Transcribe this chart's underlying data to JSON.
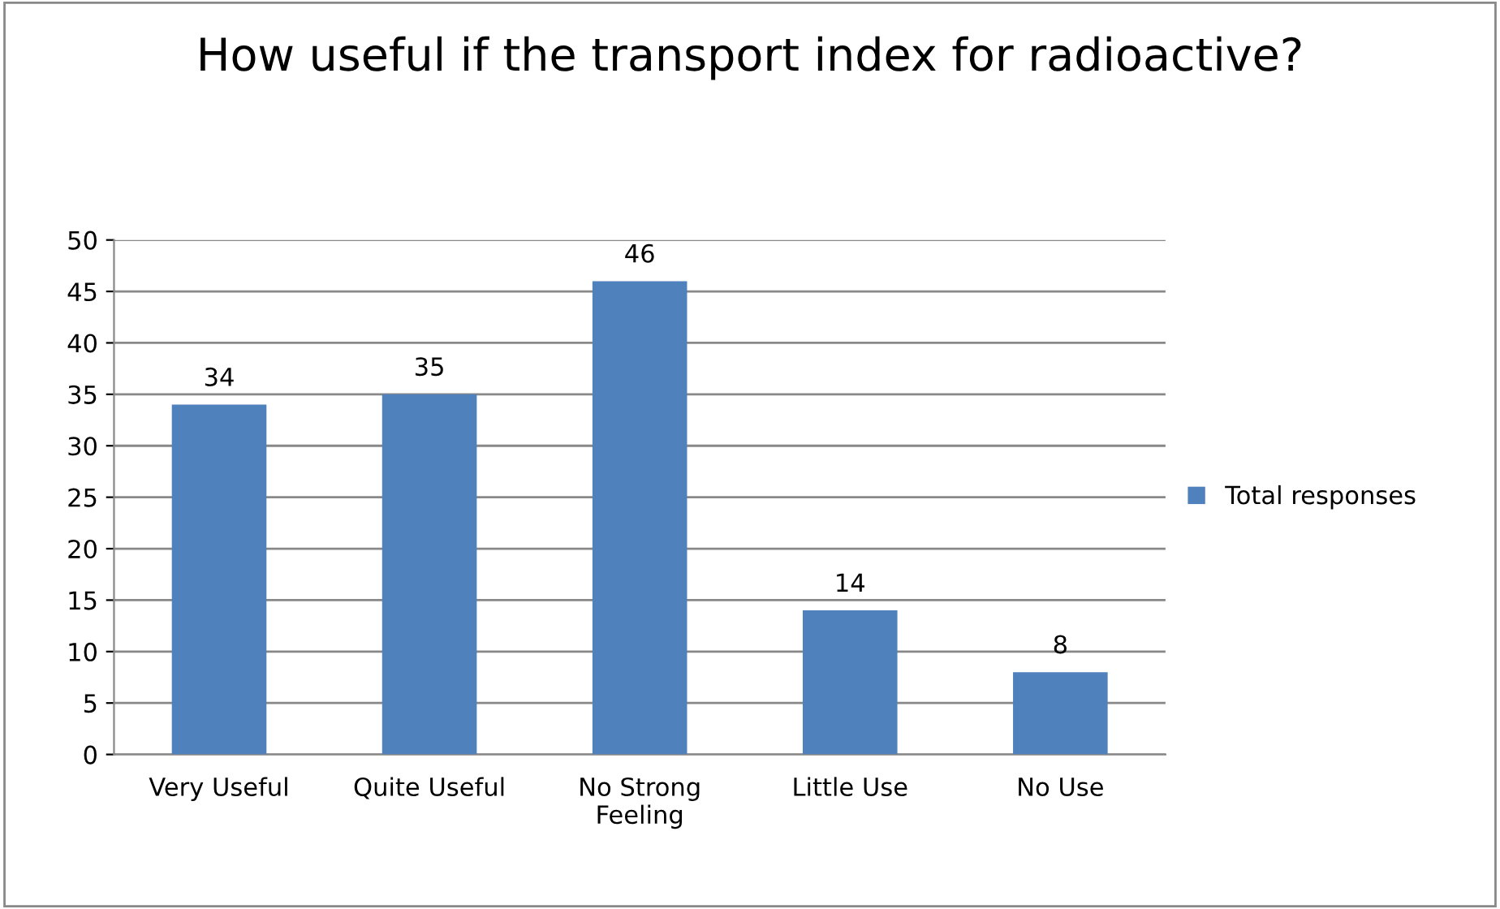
{
  "chart_data": {
    "type": "bar",
    "title": "How useful if the transport index for radioactive?",
    "categories": [
      "Very Useful",
      "Quite Useful",
      "No Strong Feeling",
      "Little Use",
      "No Use"
    ],
    "series": [
      {
        "name": "Total responses",
        "color": "#4f81bd",
        "values": [
          34,
          35,
          46,
          14,
          8
        ]
      }
    ],
    "ylim": [
      0,
      50
    ],
    "yticks": [
      0,
      5,
      10,
      15,
      20,
      25,
      30,
      35,
      40,
      45,
      50
    ],
    "grid": "y",
    "legend": "right",
    "data_labels": true
  }
}
